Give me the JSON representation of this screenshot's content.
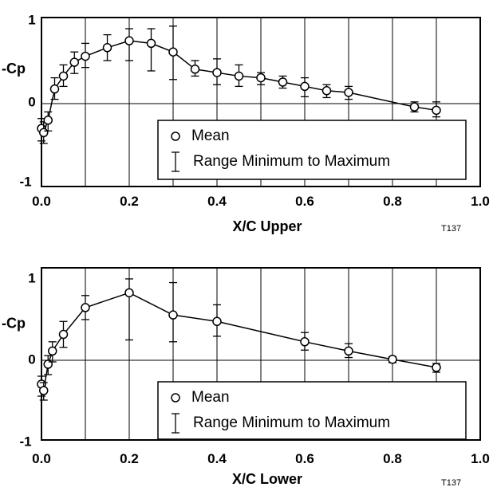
{
  "chart_data": [
    {
      "type": "line",
      "xlabel": "X/C Upper",
      "ylabel": "-Cp",
      "xlim": [
        0,
        1
      ],
      "ylim": [
        -1,
        1
      ],
      "x_ticks": [
        "0.0",
        "0.2",
        "0.4",
        "0.6",
        "0.8",
        "1.0"
      ],
      "y_ticks": [
        "1",
        "0",
        "-1"
      ],
      "grid": "vertical",
      "tag": "T137",
      "legend": {
        "placement": "bottom-center",
        "entries": [
          {
            "marker": "circle",
            "label": "Mean"
          },
          {
            "marker": "errorbar",
            "label": "Range Minimum to Maximum"
          }
        ]
      },
      "series": [
        {
          "x": [
            0.0,
            0.005,
            0.015,
            0.03,
            0.05,
            0.075,
            0.1,
            0.15,
            0.2,
            0.25,
            0.3,
            0.35,
            0.4,
            0.45,
            0.5,
            0.55,
            0.6,
            0.65,
            0.7,
            0.85,
            0.9
          ],
          "y": [
            -0.3,
            -0.35,
            -0.2,
            0.17,
            0.32,
            0.48,
            0.55,
            0.65,
            0.73,
            0.7,
            0.6,
            0.4,
            0.36,
            0.32,
            0.3,
            0.25,
            0.2,
            0.15,
            0.13,
            -0.04,
            -0.08
          ],
          "min": [
            -0.45,
            -0.48,
            -0.33,
            0.05,
            0.2,
            0.35,
            0.42,
            0.5,
            0.5,
            0.38,
            0.28,
            0.32,
            0.22,
            0.2,
            0.22,
            0.18,
            0.08,
            0.07,
            0.05,
            -0.1,
            -0.16
          ],
          "max": [
            -0.18,
            -0.22,
            -0.1,
            0.3,
            0.45,
            0.6,
            0.7,
            0.8,
            0.87,
            0.87,
            0.9,
            0.5,
            0.52,
            0.45,
            0.36,
            0.32,
            0.3,
            0.22,
            0.2,
            0.02,
            0.02
          ]
        }
      ]
    },
    {
      "type": "line",
      "xlabel": "X/C Lower",
      "ylabel": "-Cp",
      "xlim": [
        0,
        1
      ],
      "ylim": [
        -1,
        1
      ],
      "x_ticks": [
        "0.0",
        "0.2",
        "0.4",
        "0.6",
        "0.8",
        "1.0"
      ],
      "y_ticks": [
        "1",
        "0",
        "-1"
      ],
      "grid": "vertical",
      "tag": "T137",
      "legend": {
        "placement": "bottom-center",
        "entries": [
          {
            "marker": "circle",
            "label": "Mean"
          },
          {
            "marker": "errorbar",
            "label": "Range Minimum to Maximum"
          }
        ]
      },
      "series": [
        {
          "x": [
            0.0,
            0.005,
            0.015,
            0.025,
            0.05,
            0.1,
            0.2,
            0.3,
            0.4,
            0.6,
            0.7,
            0.8,
            0.9
          ],
          "y": [
            -0.3,
            -0.38,
            -0.05,
            0.1,
            0.28,
            0.57,
            0.73,
            0.49,
            0.42,
            0.2,
            0.1,
            0.01,
            -0.09
          ],
          "min": [
            -0.45,
            -0.5,
            -0.18,
            -0.02,
            0.14,
            0.44,
            0.22,
            0.2,
            0.26,
            0.11,
            0.03,
            -0.03,
            -0.15
          ],
          "max": [
            -0.2,
            -0.28,
            0.05,
            0.2,
            0.42,
            0.7,
            0.88,
            0.84,
            0.6,
            0.3,
            0.18,
            0.04,
            -0.04
          ]
        }
      ]
    }
  ]
}
